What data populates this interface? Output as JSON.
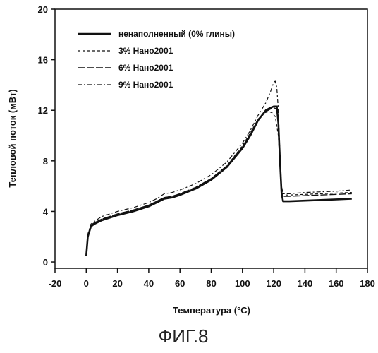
{
  "caption": "ФИГ.8",
  "chart_data": {
    "type": "line",
    "title": "",
    "xlabel": "Температура (°C)",
    "ylabel": "Тепловой поток (мВт)",
    "xlim": [
      -20,
      180
    ],
    "ylim": [
      -0.5,
      20
    ],
    "xticks": [
      -20,
      0,
      20,
      40,
      60,
      80,
      100,
      120,
      140,
      160,
      180
    ],
    "yticks": [
      0,
      4,
      8,
      12,
      16,
      20
    ],
    "x_tick_labels": [
      "-20",
      "0",
      "20",
      "40",
      "60",
      "80",
      "100",
      "120",
      "140",
      "160",
      "180"
    ],
    "y_tick_labels": [
      "0",
      "4",
      "8",
      "12",
      "16",
      "20"
    ],
    "grid": false,
    "legend_position": "top-left",
    "series": [
      {
        "name": "ненаполненный (0% глины)",
        "style": "solid-thick",
        "x": [
          0,
          1,
          3,
          5,
          10,
          20,
          30,
          40,
          45,
          50,
          55,
          60,
          70,
          80,
          90,
          100,
          105,
          110,
          115,
          118,
          120,
          122,
          123,
          124,
          125,
          126,
          130,
          140,
          150,
          160,
          170
        ],
        "y": [
          0.5,
          2.0,
          2.8,
          3.0,
          3.3,
          3.7,
          4.0,
          4.4,
          4.7,
          5.0,
          5.1,
          5.3,
          5.8,
          6.5,
          7.5,
          9.0,
          10.0,
          11.2,
          12.0,
          12.2,
          12.3,
          12.3,
          11.0,
          8.0,
          5.5,
          4.8,
          4.8,
          4.85,
          4.9,
          4.95,
          5.0
        ]
      },
      {
        "name": "3% Нано2001",
        "style": "dashed",
        "x": [
          0,
          1,
          3,
          5,
          10,
          20,
          30,
          40,
          45,
          50,
          55,
          60,
          70,
          80,
          90,
          100,
          105,
          110,
          114,
          117,
          119,
          121,
          123,
          124,
          125,
          126,
          130,
          140,
          150,
          160,
          170
        ],
        "y": [
          0.5,
          2.1,
          2.9,
          3.1,
          3.4,
          3.8,
          4.1,
          4.5,
          4.8,
          5.1,
          5.2,
          5.4,
          5.9,
          6.6,
          7.6,
          9.2,
          10.2,
          11.3,
          11.8,
          11.9,
          11.8,
          11.5,
          10.0,
          7.5,
          5.6,
          5.3,
          5.3,
          5.35,
          5.4,
          5.45,
          5.5
        ]
      },
      {
        "name": "6% Нано2001",
        "style": "long-dash",
        "x": [
          0,
          1,
          3,
          5,
          10,
          20,
          30,
          40,
          45,
          50,
          55,
          60,
          70,
          80,
          90,
          100,
          105,
          110,
          115,
          118,
          120,
          122,
          123,
          124,
          125,
          126,
          130,
          140,
          150,
          160,
          170
        ],
        "y": [
          0.5,
          2.1,
          2.9,
          3.1,
          3.4,
          3.8,
          4.1,
          4.5,
          4.8,
          5.1,
          5.2,
          5.4,
          5.9,
          6.6,
          7.6,
          9.1,
          10.1,
          11.2,
          11.9,
          12.1,
          12.2,
          12.1,
          11.0,
          8.0,
          5.5,
          5.2,
          5.2,
          5.25,
          5.3,
          5.35,
          5.4
        ]
      },
      {
        "name": "9% Нано2001",
        "style": "dash-dot",
        "x": [
          0,
          1,
          3,
          5,
          10,
          20,
          30,
          40,
          45,
          50,
          55,
          60,
          70,
          80,
          90,
          100,
          105,
          110,
          115,
          118,
          120,
          121,
          122,
          123,
          124,
          125,
          126,
          130,
          140,
          150,
          160,
          170
        ],
        "y": [
          0.5,
          2.2,
          3.0,
          3.2,
          3.6,
          4.0,
          4.3,
          4.7,
          5.0,
          5.4,
          5.5,
          5.7,
          6.2,
          6.9,
          7.9,
          9.4,
          10.4,
          11.6,
          12.6,
          13.5,
          14.2,
          14.3,
          13.8,
          12.0,
          8.5,
          6.0,
          5.4,
          5.4,
          5.5,
          5.55,
          5.6,
          5.7
        ]
      }
    ]
  }
}
